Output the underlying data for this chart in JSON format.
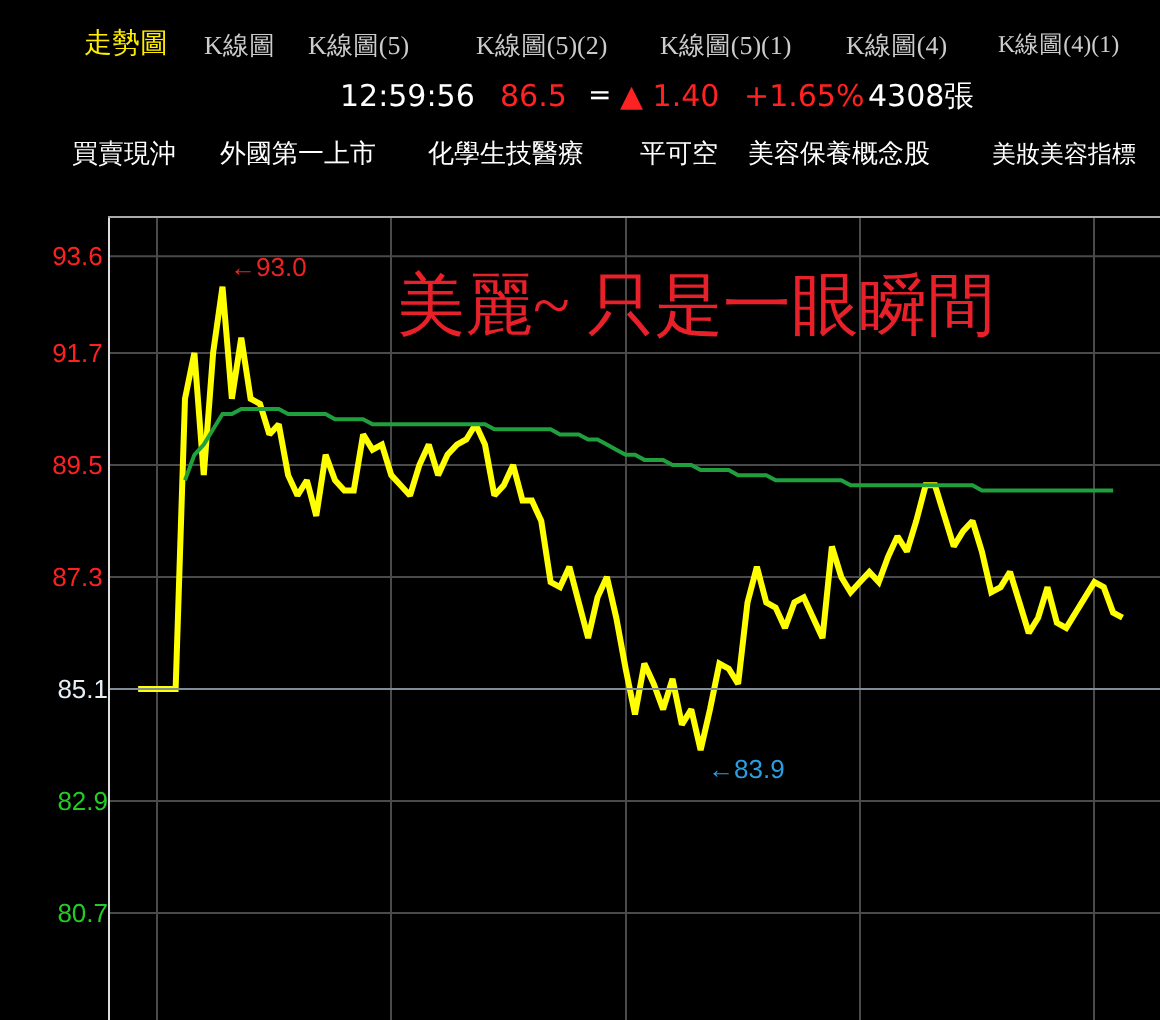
{
  "chart_data": {
    "type": "line",
    "title": "美麗~ 只是一眼瞬間",
    "categories": [
      null,
      null,
      null,
      null,
      null,
      null,
      null,
      null,
      null,
      null,
      null,
      null,
      null,
      null,
      null,
      null,
      null,
      null,
      null,
      null,
      null,
      null,
      null,
      null,
      null,
      null,
      null,
      null,
      null,
      null,
      null,
      null,
      null,
      null,
      null,
      null,
      null,
      null,
      null,
      null,
      null,
      null,
      null,
      null,
      null,
      null,
      null,
      null,
      null,
      null,
      null,
      null,
      null,
      null,
      null,
      null,
      null,
      null,
      null,
      null,
      null,
      null,
      null,
      null,
      null,
      null,
      null,
      null,
      null,
      null,
      null,
      null,
      null,
      null,
      null,
      null,
      null,
      null,
      null,
      null,
      null,
      null,
      null,
      null,
      null,
      null,
      null,
      null,
      null,
      null,
      null,
      null,
      null,
      null,
      null,
      null,
      null,
      null,
      null,
      null,
      null,
      null,
      null,
      null,
      null,
      null
    ],
    "ylim": [
      78.6,
      94.35
    ],
    "yticks": [
      93.6,
      91.7,
      89.5,
      87.3,
      85.1,
      82.9,
      80.7
    ],
    "tick_labels": "y",
    "grid": true,
    "marker": "none",
    "line_style": "solid",
    "ref_lines": [
      {
        "axis": "y",
        "value": 85.1,
        "color": "#7f8c99"
      }
    ],
    "annotations": [
      "←93.0",
      "←83.9",
      "走勢圖",
      "K線圖",
      "K線圖(5)",
      "K線圖(5)(2)",
      "K線圖(5)(1)",
      "K線圖(4)",
      "K線圖(4)(1)",
      "12:59:56",
      "86.5",
      "=",
      "▲ 1.40",
      "+1.65%",
      "4308張",
      "買賣現沖",
      "外國第一上市",
      "化學生技醫療",
      "平可空",
      "美容保養概念股",
      "美妝美容指標"
    ],
    "series": [
      {
        "color": "#ffff00",
        "values": [
          85.1,
          85.1,
          85.1,
          85.1,
          85.1,
          90.8,
          91.7,
          89.3,
          91.7,
          93.0,
          90.8,
          92.0,
          90.8,
          90.7,
          90.1,
          90.3,
          89.3,
          88.9,
          89.2,
          88.5,
          89.7,
          89.2,
          89.0,
          89.0,
          90.1,
          89.8,
          89.9,
          89.3,
          89.1,
          88.9,
          89.5,
          89.9,
          89.3,
          89.7,
          89.9,
          90.0,
          90.3,
          89.9,
          88.9,
          89.1,
          89.5,
          88.8,
          88.8,
          88.4,
          87.2,
          87.1,
          87.5,
          86.8,
          86.1,
          86.9,
          87.3,
          86.5,
          85.5,
          84.6,
          85.6,
          85.2,
          84.7,
          85.3,
          84.4,
          84.7,
          83.9,
          84.7,
          85.6,
          85.5,
          85.2,
          86.8,
          87.5,
          86.8,
          86.7,
          86.3,
          86.8,
          86.9,
          86.5,
          86.1,
          87.9,
          87.3,
          87.0,
          87.2,
          87.4,
          87.2,
          87.7,
          88.1,
          87.8,
          88.4,
          89.1,
          89.1,
          88.5,
          87.9,
          88.2,
          88.4,
          87.8,
          87.0,
          87.1,
          87.4,
          86.8,
          86.2,
          86.5,
          87.1,
          86.4,
          86.3,
          86.6,
          86.9,
          87.2,
          87.1,
          86.6,
          86.5
        ]
      },
      {
        "color": "#1fa03c",
        "values": [
          null,
          null,
          null,
          null,
          null,
          89.2,
          89.7,
          89.9,
          90.2,
          90.5,
          90.5,
          90.6,
          90.6,
          90.6,
          90.6,
          90.6,
          90.5,
          90.5,
          90.5,
          90.5,
          90.5,
          90.4,
          90.4,
          90.4,
          90.4,
          90.3,
          90.3,
          90.3,
          90.3,
          90.3,
          90.3,
          90.3,
          90.3,
          90.3,
          90.3,
          90.3,
          90.3,
          90.3,
          90.2,
          90.2,
          90.2,
          90.2,
          90.2,
          90.2,
          90.2,
          90.1,
          90.1,
          90.1,
          90.0,
          90.0,
          89.9,
          89.8,
          89.7,
          89.7,
          89.6,
          89.6,
          89.6,
          89.5,
          89.5,
          89.5,
          89.4,
          89.4,
          89.4,
          89.4,
          89.3,
          89.3,
          89.3,
          89.3,
          89.2,
          89.2,
          89.2,
          89.2,
          89.2,
          89.2,
          89.2,
          89.2,
          89.1,
          89.1,
          89.1,
          89.1,
          89.1,
          89.1,
          89.1,
          89.1,
          89.1,
          89.1,
          89.1,
          89.1,
          89.1,
          89.1,
          89.0,
          89.0,
          89.0,
          89.0,
          89.0,
          89.0,
          89.0,
          89.0,
          89.0,
          89.0,
          89.0,
          89.0,
          89.0,
          89.0,
          89.0,
          null
        ]
      }
    ]
  }
}
